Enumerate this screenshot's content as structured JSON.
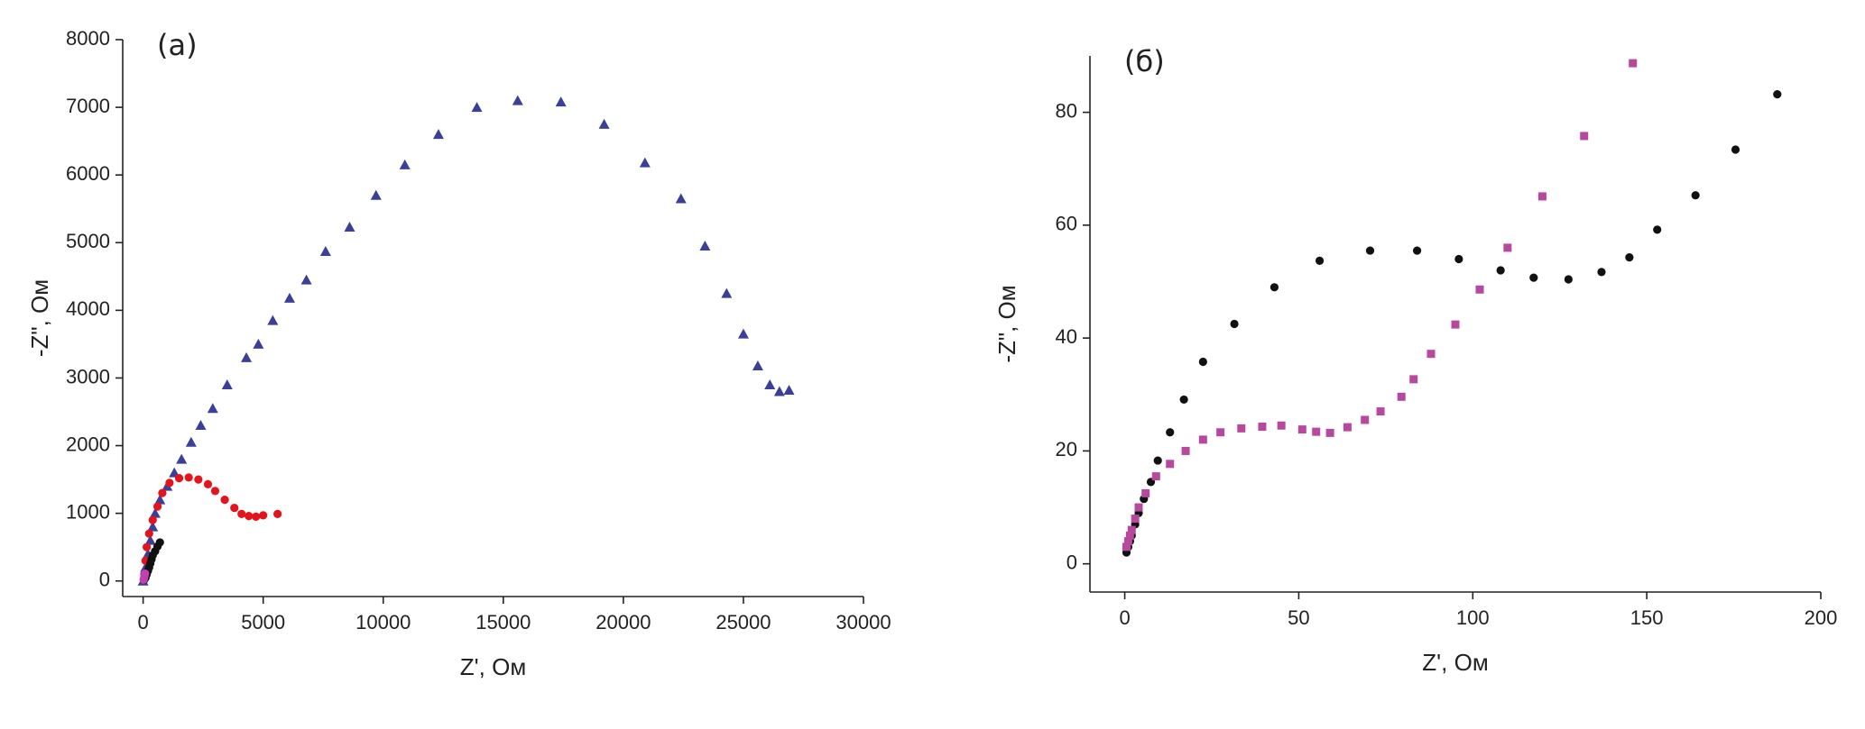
{
  "chart_data": [
    {
      "type": "scatter",
      "title": "(a)",
      "xlabel": "Z', Ом",
      "ylabel": "-Z\", Ом",
      "xlim": [
        -850,
        30000
      ],
      "ylim": [
        -230,
        8000
      ],
      "xticks": [
        0,
        5000,
        10000,
        15000,
        20000,
        25000,
        30000
      ],
      "yticks": [
        0,
        1000,
        2000,
        3000,
        4000,
        5000,
        6000,
        7000,
        8000
      ],
      "grid": false,
      "series": [
        {
          "color": "#3b3f98",
          "marker": "triangle",
          "x": [
            0,
            100,
            200,
            300,
            400,
            500,
            700,
            1000,
            1300,
            1600,
            2000,
            2400,
            2900,
            3500,
            4300,
            4800,
            5400,
            6100,
            6800,
            7600,
            8600,
            9700,
            10900,
            12300,
            13900,
            15600,
            17400,
            19200,
            20900,
            22400,
            23400,
            24300,
            25000,
            25600,
            26100,
            26500,
            26900
          ],
          "y": [
            0,
            200,
            400,
            600,
            800,
            1000,
            1200,
            1400,
            1600,
            1800,
            2050,
            2300,
            2550,
            2900,
            3300,
            3500,
            3850,
            4180,
            4450,
            4870,
            5230,
            5700,
            6150,
            6600,
            7000,
            7100,
            7080,
            6750,
            6180,
            5650,
            4950,
            4250,
            3650,
            3180,
            2900,
            2800,
            2820
          ]
        },
        {
          "color": "#e3141b",
          "marker": "circle",
          "x": [
            50,
            100,
            150,
            250,
            400,
            600,
            800,
            1100,
            1500,
            1900,
            2300,
            2700,
            3000,
            3400,
            3800,
            4100,
            4400,
            4700,
            5000,
            5600
          ],
          "y": [
            100,
            300,
            500,
            700,
            900,
            1100,
            1300,
            1450,
            1520,
            1530,
            1500,
            1430,
            1330,
            1200,
            1080,
            990,
            960,
            950,
            970,
            990
          ]
        },
        {
          "color": "#111111",
          "marker": "circle",
          "x": [
            50,
            100,
            150,
            200,
            250,
            300,
            350,
            400,
            500,
            600,
            700
          ],
          "y": [
            20,
            50,
            100,
            150,
            200,
            260,
            320,
            380,
            440,
            510,
            570
          ]
        },
        {
          "color": "#c040b0",
          "marker": "circle",
          "x": [
            20,
            40,
            60,
            80
          ],
          "y": [
            20,
            50,
            80,
            110
          ]
        }
      ]
    },
    {
      "type": "scatter",
      "title": "(б)",
      "xlabel": "Z', Ом",
      "ylabel": "-Z\", Ом",
      "xlim": [
        -10,
        200
      ],
      "ylim": [
        -5,
        90
      ],
      "xticks": [
        0,
        50,
        100,
        150,
        200
      ],
      "yticks": [
        0,
        20,
        40,
        60,
        80
      ],
      "grid": false,
      "series": [
        {
          "color": "#111111",
          "marker": "circle",
          "x": [
            0.5,
            1,
            1.5,
            2,
            3,
            4,
            5.5,
            7.5,
            9.5,
            13,
            17,
            22.5,
            31.5,
            43,
            56,
            70.5,
            84,
            96,
            108,
            117.5,
            127.5,
            137,
            145,
            153,
            164,
            175.5,
            187.5
          ],
          "y": [
            2,
            3,
            4,
            5,
            7,
            9,
            11.5,
            14.5,
            18.3,
            23.3,
            29.1,
            35.8,
            42.5,
            49,
            53.7,
            55.5,
            55.5,
            54,
            52,
            50.7,
            50.4,
            51.7,
            54.3,
            59.2,
            65.3,
            73.4,
            83.2
          ]
        },
        {
          "color": "#b8479e",
          "marker": "square",
          "x": [
            0.5,
            1,
            1.5,
            2,
            3,
            4,
            6,
            9,
            13,
            17.5,
            22.5,
            27.5,
            33.5,
            39.5,
            45,
            51,
            55,
            59,
            64,
            69,
            73.5,
            79.5,
            83,
            88,
            95,
            102,
            110,
            120,
            132,
            146
          ],
          "y": [
            3,
            4,
            5,
            6,
            8,
            10,
            12.5,
            15.5,
            17.7,
            20,
            22,
            23.3,
            24,
            24.3,
            24.5,
            23.8,
            23.4,
            23.2,
            24.2,
            25.5,
            27,
            29.6,
            32.7,
            37.2,
            42.4,
            48.6,
            56,
            65.1,
            75.8,
            88.7
          ]
        }
      ]
    }
  ]
}
